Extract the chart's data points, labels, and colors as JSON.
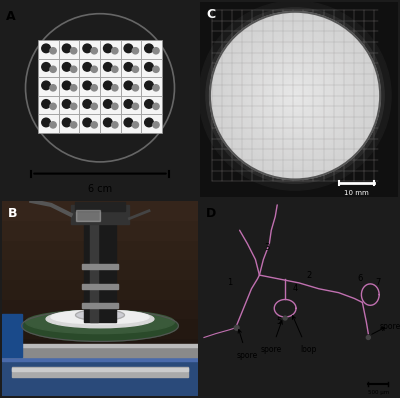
{
  "panel_A_label": "A",
  "panel_B_label": "B",
  "panel_C_label": "C",
  "panel_D_label": "D",
  "scale_bar_A": "6 cm",
  "scale_bar_C": "10 mm",
  "scale_bar_D": "500 μm",
  "bg_color": "#1c1c1c",
  "panel_bg_A": "#ffffff",
  "panel_bg_D": "#ddd8d2",
  "dot_dark": "#1a1a1a",
  "dot_light": "#888888",
  "hyphae_color": "#c070b0",
  "figsize": [
    4.0,
    3.98
  ],
  "dpi": 100
}
